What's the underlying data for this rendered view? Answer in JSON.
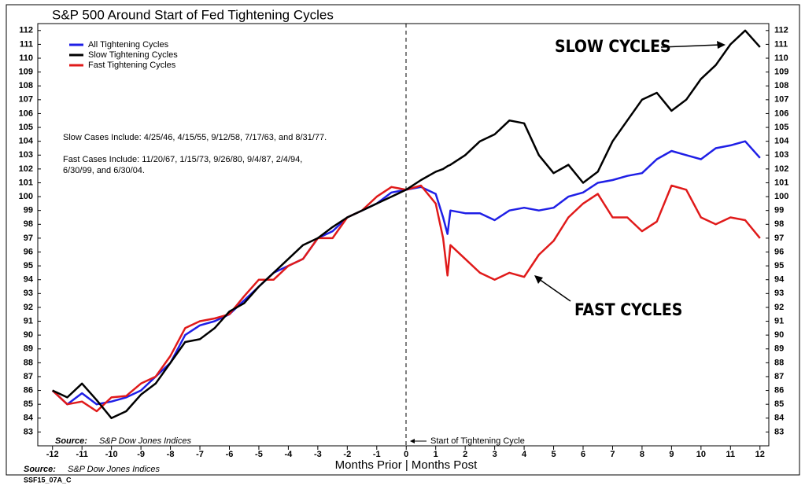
{
  "chart_data": {
    "type": "line",
    "title": "S&P 500 Around Start of Fed Tightening Cycles",
    "xlabel": "Months Prior | Months Post",
    "source_label": "Source:",
    "source": "S&P Dow Jones Indices",
    "footer": "SSF15_07A_C",
    "start_label": "Start of Tightening Cycle",
    "slow_label": "SLOW CYCLES",
    "fast_label": "FAST CYCLES",
    "notes": [
      "Slow Cases Include: 4/25/46, 4/15/55, 9/12/58, 7/17/63, and 8/31/77.",
      "Fast Cases Include: 11/20/67, 1/15/73, 9/26/80, 9/4/87, 2/4/94,",
      "6/30/99, and 6/30/04."
    ],
    "legend": "upper left",
    "xlim": [
      -12.5,
      12.3
    ],
    "ylim": [
      82,
      112.5
    ],
    "xticks": [
      -12,
      -11,
      -10,
      -9,
      -8,
      -7,
      -6,
      -5,
      -4,
      -3,
      -2,
      -1,
      0,
      1,
      2,
      3,
      4,
      5,
      6,
      7,
      8,
      9,
      10,
      11,
      12
    ],
    "yticks": [
      83,
      84,
      85,
      86,
      87,
      88,
      89,
      90,
      91,
      92,
      93,
      94,
      95,
      96,
      97,
      98,
      99,
      100,
      101,
      102,
      103,
      104,
      105,
      106,
      107,
      108,
      109,
      110,
      111,
      112
    ],
    "x": [
      -12,
      -11.5,
      -11,
      -10.5,
      -10,
      -9.5,
      -9,
      -8.5,
      -8,
      -7.5,
      -7,
      -6.5,
      -6,
      -5.5,
      -5,
      -4.5,
      -4,
      -3.5,
      -3,
      -2.5,
      -2,
      -1.5,
      -1,
      -0.5,
      0,
      0.5,
      1,
      1.25,
      1.4,
      1.5,
      2,
      2.5,
      3,
      3.5,
      4,
      4.5,
      5,
      5.5,
      6,
      6.5,
      7,
      7.5,
      8,
      8.5,
      9,
      9.5,
      10,
      10.5,
      11,
      11.5,
      12
    ],
    "series": [
      {
        "name": "All Tightening Cycles",
        "color": "#1f1fe6",
        "values": [
          86,
          85,
          85.8,
          85,
          85.2,
          85.5,
          86,
          87,
          88,
          90,
          90.7,
          91,
          91.5,
          92.5,
          93.5,
          94.5,
          95,
          95.5,
          97,
          97.5,
          98.5,
          99,
          99.5,
          100.3,
          100.5,
          100.7,
          100.2,
          98.5,
          97.3,
          99,
          98.8,
          98.8,
          98.3,
          99,
          99.2,
          99,
          99.2,
          100,
          100.3,
          101,
          101.2,
          101.5,
          101.7,
          102.7,
          103.3,
          103,
          102.7,
          103.5,
          103.7,
          104,
          102.8
        ]
      },
      {
        "name": "Slow Tightening Cycles",
        "color": "#000000",
        "values": [
          86,
          85.5,
          86.5,
          85.3,
          84,
          84.5,
          85.7,
          86.5,
          88,
          89.5,
          89.7,
          90.5,
          91.7,
          92.3,
          93.5,
          94.5,
          95.5,
          96.5,
          97,
          97.8,
          98.5,
          99,
          99.5,
          100,
          100.5,
          101.2,
          101.8,
          102,
          102.2,
          102.3,
          103,
          104,
          104.5,
          105.5,
          105.3,
          103,
          101.7,
          102.3,
          101,
          101.8,
          104,
          105.5,
          107,
          107.5,
          106.2,
          107,
          108.5,
          109.5,
          111,
          112,
          110.8
        ]
      },
      {
        "name": "Fast Tightening Cycles",
        "color": "#e01a1a",
        "values": [
          86,
          85,
          85.2,
          84.5,
          85.5,
          85.6,
          86.5,
          87,
          88.5,
          90.5,
          91,
          91.2,
          91.5,
          92.8,
          94,
          94,
          95,
          95.5,
          97,
          97,
          98.5,
          99,
          100,
          100.7,
          100.5,
          100.8,
          99.5,
          97,
          94.3,
          96.5,
          95.5,
          94.5,
          94,
          94.5,
          94.2,
          95.8,
          96.8,
          98.5,
          99.5,
          100.2,
          98.5,
          98.5,
          97.5,
          98.2,
          100.8,
          100.5,
          98.5,
          98,
          98.5,
          98.3,
          97
        ]
      }
    ]
  }
}
